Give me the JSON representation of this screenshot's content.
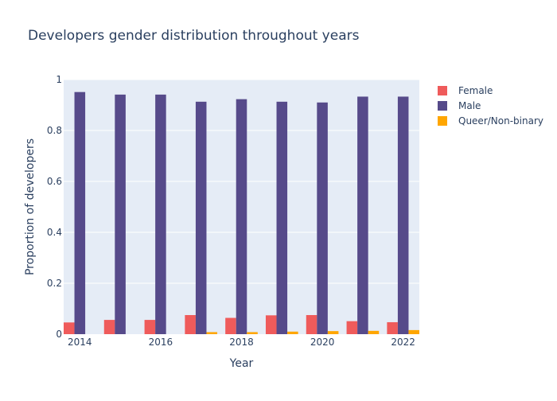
{
  "chart_data": {
    "type": "bar",
    "title": "Developers gender distribution throughout years",
    "xlabel": "Year",
    "ylabel": "Proportion of developers",
    "x": [
      2014,
      2015,
      2016,
      2017,
      2018,
      2019,
      2020,
      2021,
      2022
    ],
    "x_tick_labels": [
      "2014",
      "2016",
      "2018",
      "2020",
      "2022"
    ],
    "y_tick_labels": [
      "0",
      "0.2",
      "0.4",
      "0.6",
      "0.8",
      "1"
    ],
    "ylim": [
      0,
      1
    ],
    "grid": true,
    "legend_position": "top-right",
    "series": [
      {
        "name": "Female",
        "color": "#ef5b5b",
        "values": [
          0.046,
          0.056,
          0.056,
          0.075,
          0.064,
          0.074,
          0.075,
          0.051,
          0.047
        ]
      },
      {
        "name": "Male",
        "color": "#564a8a",
        "values": [
          0.951,
          0.941,
          0.941,
          0.913,
          0.923,
          0.913,
          0.91,
          0.933,
          0.933
        ]
      },
      {
        "name": "Queer/Non-binary",
        "color": "#ffa600",
        "values": [
          0.0,
          0.0,
          0.0,
          0.008,
          0.008,
          0.01,
          0.012,
          0.013,
          0.016
        ]
      }
    ]
  }
}
